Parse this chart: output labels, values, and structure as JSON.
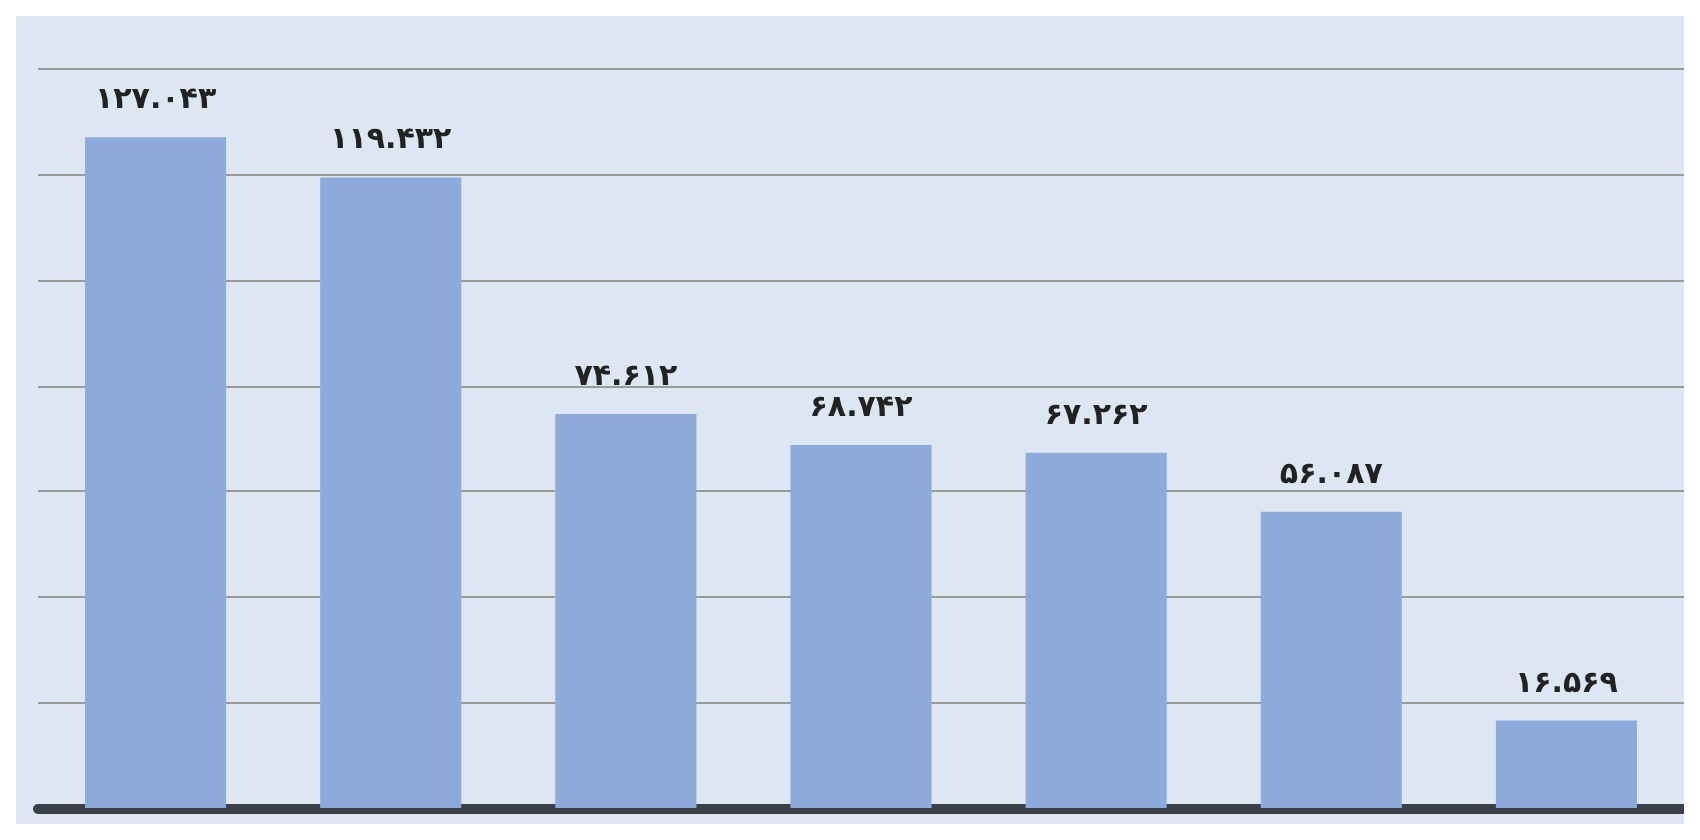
{
  "chart_data": {
    "type": "bar",
    "categories": [
      null,
      null,
      null,
      null,
      null,
      null,
      null
    ],
    "values": [
      127.043,
      119.432,
      74.612,
      68.742,
      67.262,
      56.087,
      16.569
    ],
    "value_labels": [
      "۱۲۷.۰۴۳",
      "۱۱۹.۴۳۲",
      "۷۴.۶۱۲",
      "۶۸.۷۴۲",
      "۶۷.۲۶۲",
      "۵۶.۰۸۷",
      "۱۶.۵۶۹"
    ],
    "color": "#8eaadb",
    "ylim": [
      0,
      150
    ],
    "yticks": [
      {
        "value": 0,
        "label": null
      },
      {
        "value": 20,
        "label": null
      },
      {
        "value": 40,
        "label": null
      },
      {
        "value": 60,
        "label": null
      },
      {
        "value": 80,
        "label": null
      },
      {
        "value": 100,
        "label": null
      },
      {
        "value": 120,
        "label": null
      },
      {
        "value": 140,
        "label": null
      }
    ],
    "grid": "y"
  }
}
